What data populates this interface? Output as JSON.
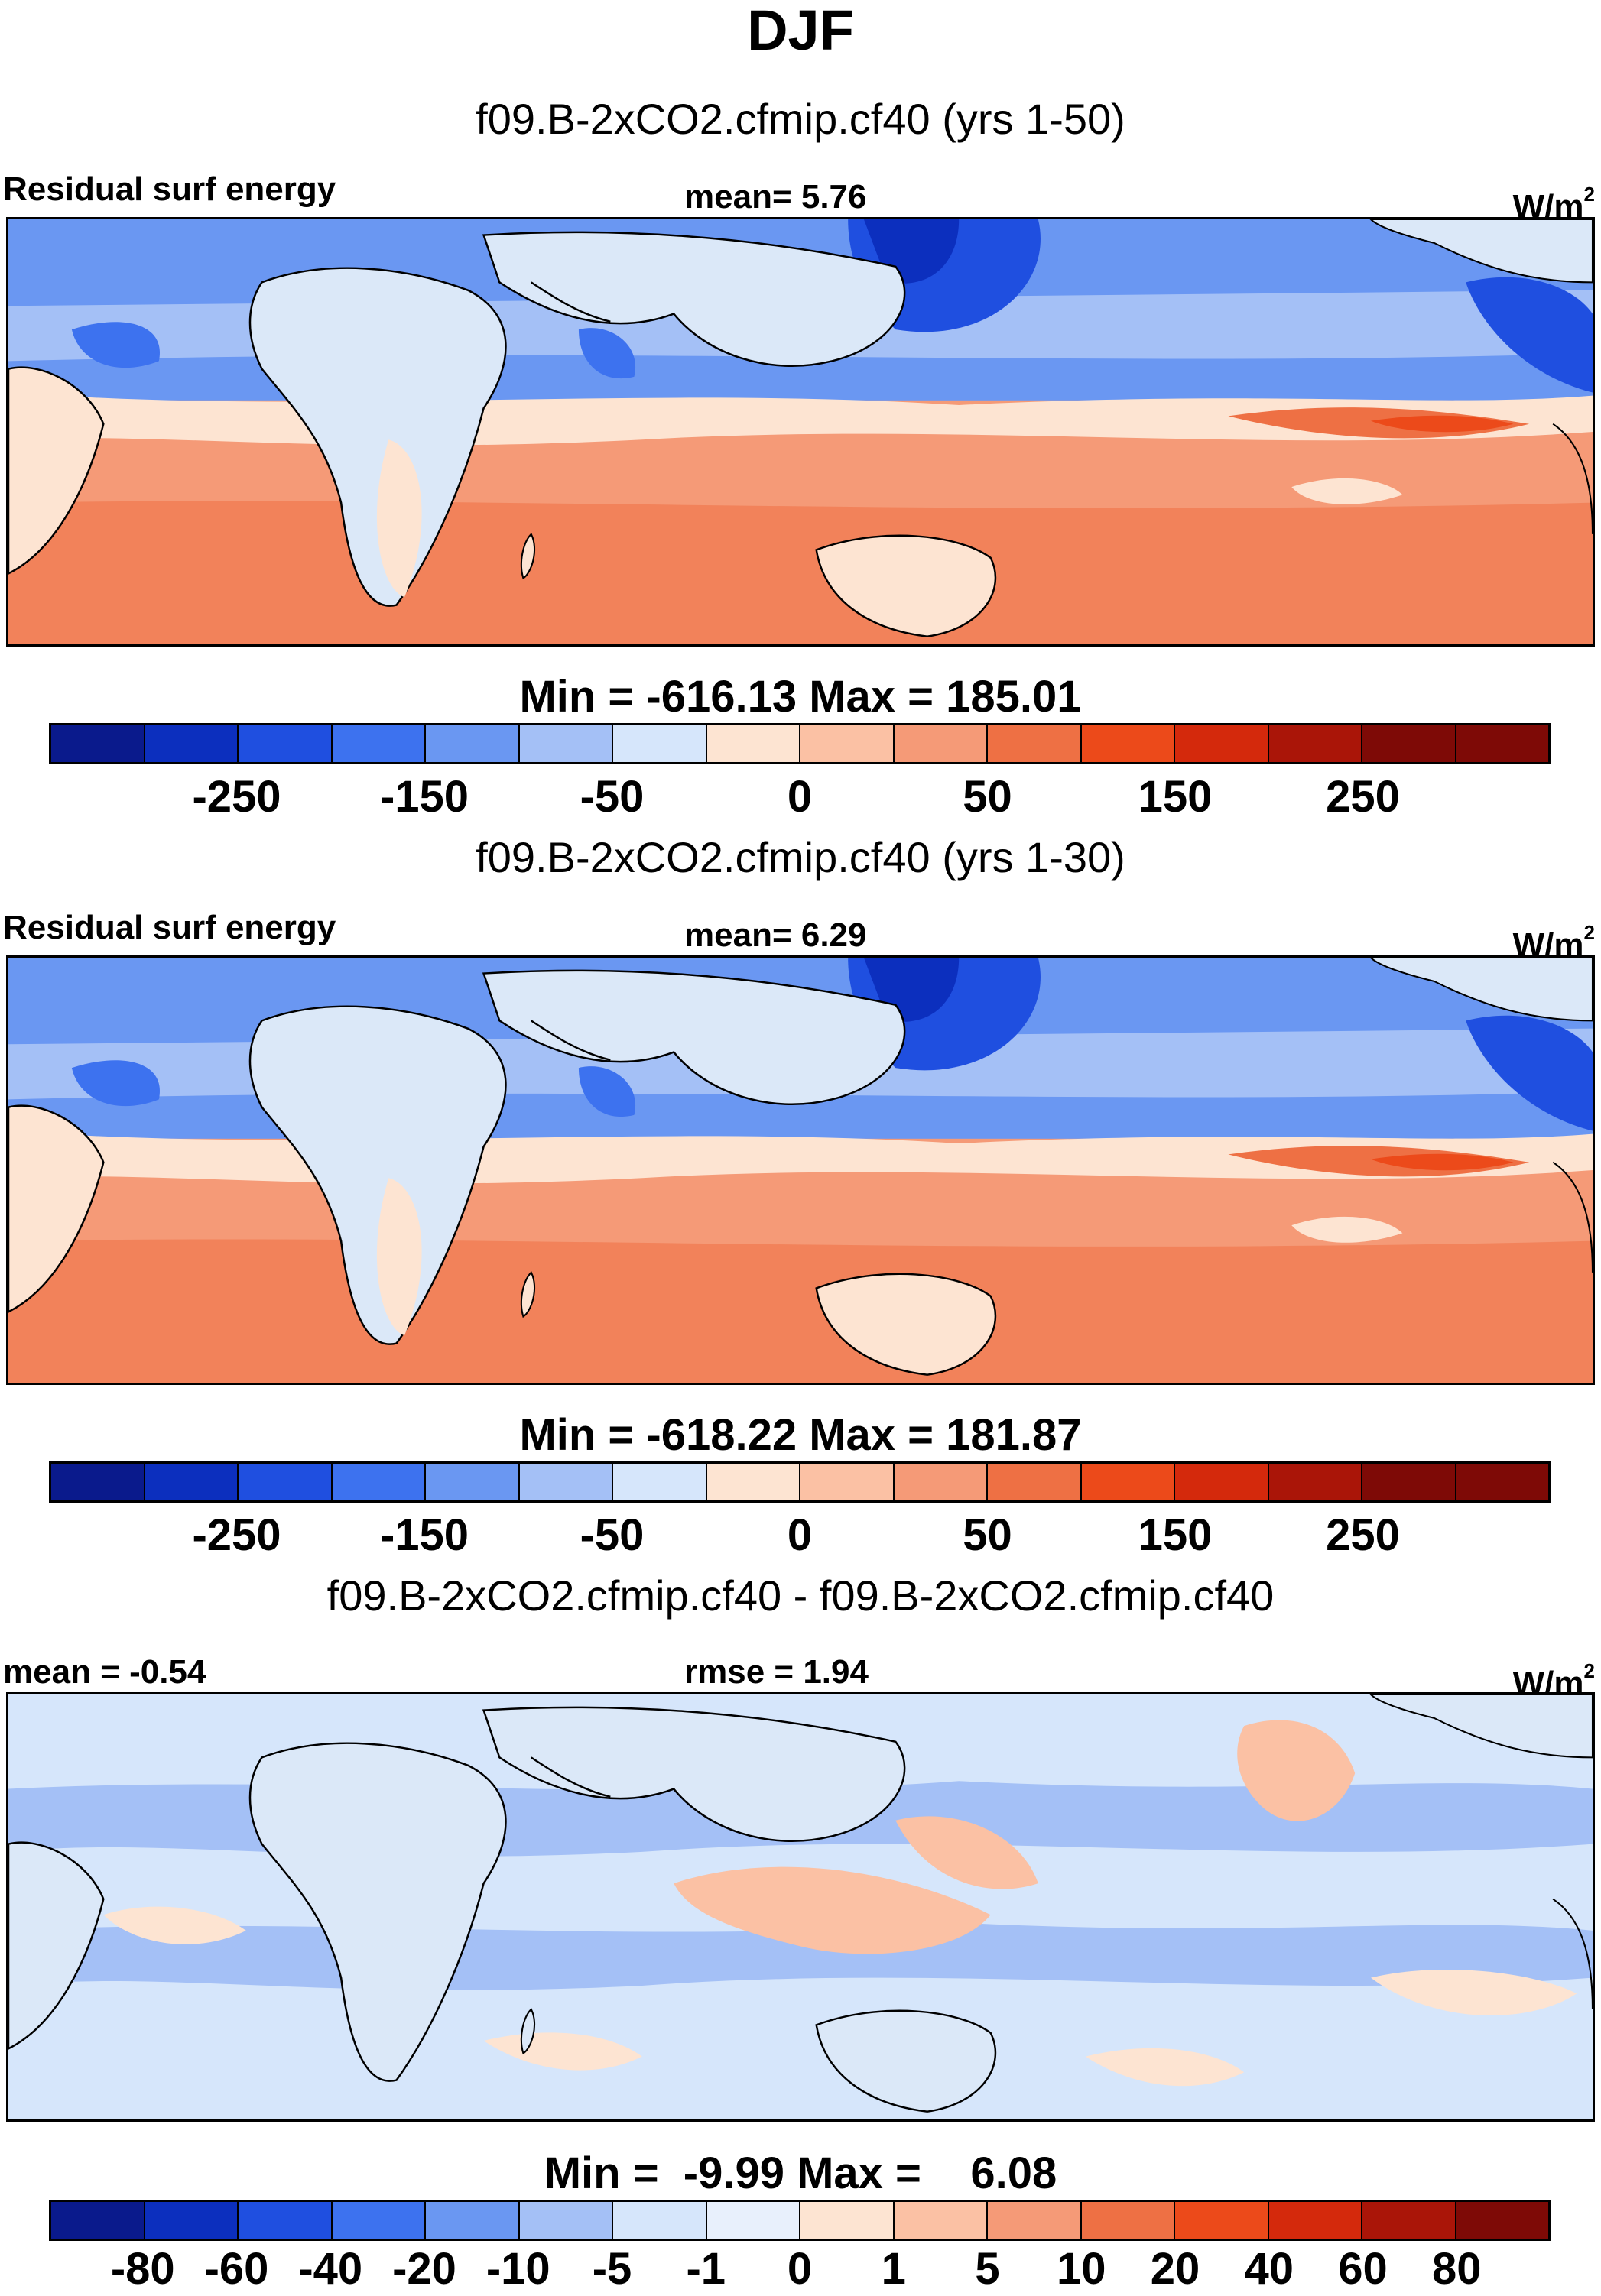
{
  "title": "DJF",
  "colors": {
    "palette12": [
      "#0a1a8c",
      "#0c2fbe",
      "#1f4fe0",
      "#3d72ef",
      "#6a97f2",
      "#a4c0f6",
      "#d6e6fb",
      "#fde4d2",
      "#fbc1a4",
      "#f59a77",
      "#ee7044",
      "#ec4a1a",
      "#d4290c",
      "#aa1508",
      "#7e0a06"
    ],
    "land": "#dbe8f8",
    "land_warm": "#fde4d2"
  },
  "panels": [
    {
      "case_title": "f09.B-2xCO2.cfmip.cf40 (yrs 1-50)",
      "left_label": "Residual surf energy",
      "center_label": "mean=   5.76",
      "units_base": "W/m",
      "units_exp": "2",
      "minmax": "Min = -616.13 Max = 185.01",
      "tick_labels": [
        "-250",
        "-150",
        "-50",
        "0",
        "50",
        "150",
        "250"
      ]
    },
    {
      "case_title": "f09.B-2xCO2.cfmip.cf40 (yrs 1-30)",
      "left_label": "Residual surf energy",
      "center_label": "mean=   6.29",
      "units_base": "W/m",
      "units_exp": "2",
      "minmax": "Min = -618.22 Max = 181.87",
      "tick_labels": [
        "-250",
        "-150",
        "-50",
        "0",
        "50",
        "150",
        "250"
      ]
    },
    {
      "case_title": "f09.B-2xCO2.cfmip.cf40 - f09.B-2xCO2.cfmip.cf40",
      "left_label": "mean =  -0.54",
      "center_label": "rmse =   1.94",
      "units_base": "W/m",
      "units_exp": "2",
      "minmax": "Min =  -9.99 Max =    6.08",
      "tick_labels": [
        "-80",
        "-60",
        "-40",
        "-20",
        "-10",
        "-5",
        "-1",
        "0",
        "1",
        "5",
        "10",
        "20",
        "40",
        "60",
        "80"
      ]
    }
  ]
}
